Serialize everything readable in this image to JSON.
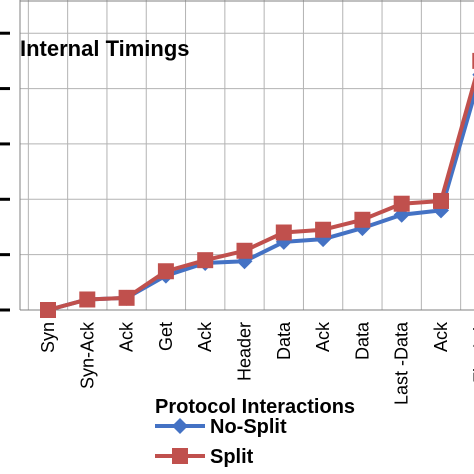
{
  "chart_data": {
    "type": "line",
    "title": "Internal Timings",
    "xlabel": "Protocol Interactions",
    "ylabel": "",
    "categories": [
      "Syn",
      "Syn-Ack",
      "Ack",
      "Get",
      "Ack",
      "Header",
      "Data",
      "Ack",
      "Data",
      "Last -Data",
      "Ack",
      "Fin-Ack"
    ],
    "ylim": [
      0,
      5.6
    ],
    "grid": true,
    "legend_position": "bottom",
    "series": [
      {
        "name": "No-Split",
        "color": "#4472C4",
        "marker": "diamond",
        "values": [
          0.0,
          0.19,
          0.22,
          0.62,
          0.85,
          0.88,
          1.23,
          1.28,
          1.48,
          1.72,
          1.8,
          4.25
        ]
      },
      {
        "name": "Split",
        "color": "#C0504D",
        "marker": "square",
        "values": [
          0.0,
          0.19,
          0.22,
          0.7,
          0.9,
          1.07,
          1.4,
          1.45,
          1.63,
          1.92,
          1.97,
          4.5
        ]
      }
    ]
  }
}
